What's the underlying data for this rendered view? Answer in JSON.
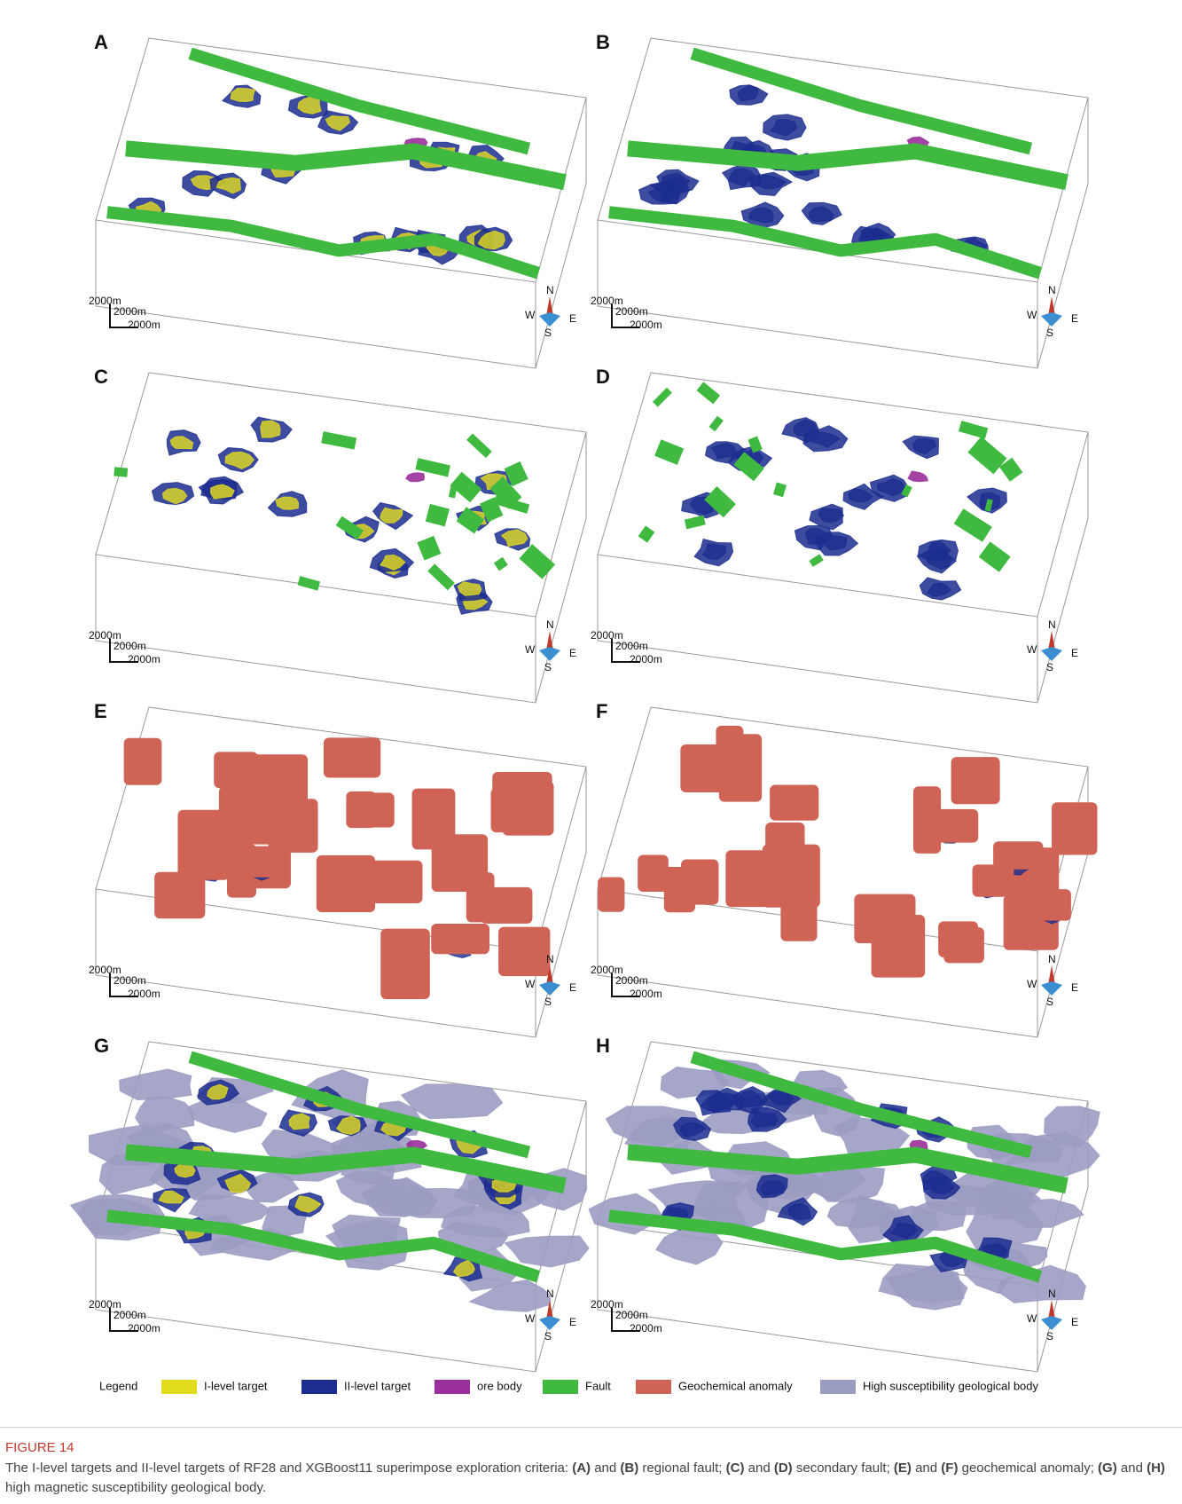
{
  "panels": [
    {
      "label": "A",
      "scale": [
        "2000m",
        "2000m",
        "2000m"
      ],
      "compass": {
        "n": "N",
        "w": "W",
        "e": "E",
        "s": "S"
      }
    },
    {
      "label": "B",
      "scale": [
        "2000m",
        "2000m",
        "2000m"
      ],
      "compass": {
        "n": "N",
        "w": "W",
        "e": "E",
        "s": "S"
      }
    },
    {
      "label": "C",
      "scale": [
        "2000m",
        "2000m",
        "2000m"
      ],
      "compass": {
        "n": "N",
        "w": "W",
        "e": "E",
        "s": "S"
      }
    },
    {
      "label": "D",
      "scale": [
        "2000m",
        "2000m",
        "2000m"
      ],
      "compass": {
        "n": "N",
        "w": "W",
        "e": "E",
        "s": "S"
      }
    },
    {
      "label": "E",
      "scale": [
        "2000m",
        "2000m",
        "2000m"
      ],
      "compass": {
        "n": "N",
        "w": "W",
        "e": "E",
        "s": "S"
      }
    },
    {
      "label": "F",
      "scale": [
        "2000m",
        "2000m",
        "2000m"
      ],
      "compass": {
        "n": "N",
        "w": "W",
        "e": "E",
        "s": "S"
      }
    },
    {
      "label": "G",
      "scale": [
        "2000m",
        "2000m",
        "2000m"
      ],
      "compass": {
        "n": "N",
        "w": "W",
        "e": "E",
        "s": "S"
      }
    },
    {
      "label": "H",
      "scale": [
        "2000m",
        "2000m",
        "2000m"
      ],
      "compass": {
        "n": "N",
        "w": "W",
        "e": "E",
        "s": "S"
      }
    }
  ],
  "legend": {
    "title": "Legend",
    "items": [
      {
        "name": "I-level target",
        "color": "#e3dc1e"
      },
      {
        "name": "II-level target",
        "color": "#1c2d8f"
      },
      {
        "name": "ore body",
        "color": "#9b2f9b"
      },
      {
        "name": "Fault",
        "color": "#3fb93f"
      },
      {
        "name": "Geochemical anomaly",
        "color": "#cf6356"
      },
      {
        "name": "High susceptibility geological body",
        "color": "#9b9cc2"
      }
    ]
  },
  "caption": {
    "label": "FIGURE 14",
    "text": [
      {
        "text": "The I-level targets and II-level targets of RF28 and XGBoost11 superimpose exploration criteria: ",
        "bold": false
      },
      {
        "text": "(A)",
        "bold": true
      },
      {
        "text": " and ",
        "bold": false
      },
      {
        "text": "(B)",
        "bold": true
      },
      {
        "text": " regional fault; ",
        "bold": false
      },
      {
        "text": "(C)",
        "bold": true
      },
      {
        "text": " and ",
        "bold": false
      },
      {
        "text": "(D)",
        "bold": true
      },
      {
        "text": " secondary fault; ",
        "bold": false
      },
      {
        "text": "(E)",
        "bold": true
      },
      {
        "text": " and ",
        "bold": false
      },
      {
        "text": "(F)",
        "bold": true
      },
      {
        "text": " geochemical anomaly; ",
        "bold": false
      },
      {
        "text": "(G)",
        "bold": true
      },
      {
        "text": " and ",
        "bold": false
      },
      {
        "text": "(H)",
        "bold": true
      },
      {
        "text": " high magnetic susceptibility geological body.",
        "bold": false
      }
    ]
  }
}
